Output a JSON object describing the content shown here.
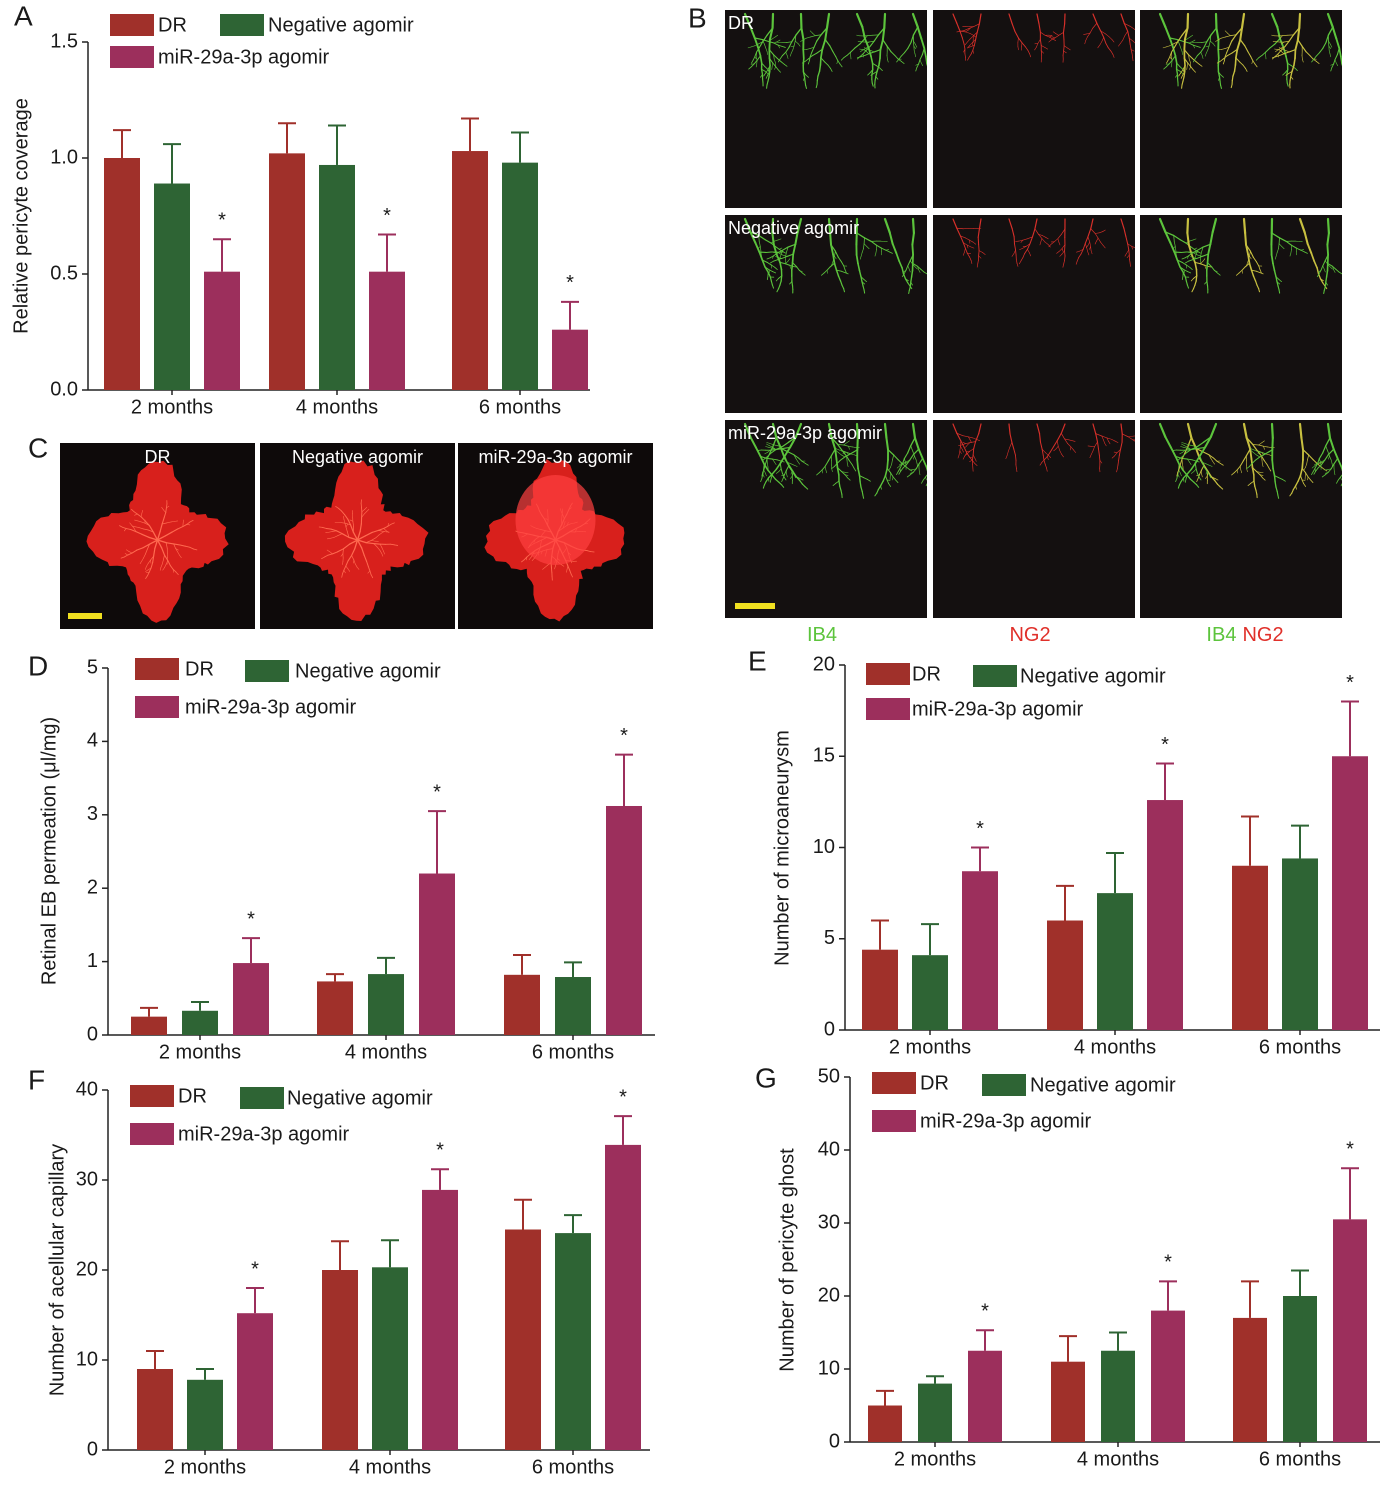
{
  "chart_data": [
    {
      "type": "bar",
      "panel": "A",
      "ylabel": "Relative pericyte coverage",
      "categories": [
        "2 months",
        "4 months",
        "6 months"
      ],
      "ylim": [
        0,
        1.5
      ],
      "yticks": [
        {
          "value": 0,
          "label": "0.0"
        },
        0.5,
        {
          "value": 1,
          "label": "1.0"
        },
        1.5
      ],
      "series": [
        {
          "name": "DR",
          "color": "#a0302a",
          "values": [
            1.0,
            1.02,
            1.03
          ],
          "errors": [
            0.12,
            0.13,
            0.14
          ]
        },
        {
          "name": "Negative agomir",
          "color": "#2e6434",
          "values": [
            0.89,
            0.97,
            0.98
          ],
          "errors": [
            0.17,
            0.17,
            0.13
          ]
        },
        {
          "name": "miR-29a-3p agomir",
          "color": "#9c2f5c",
          "values": [
            0.51,
            0.51,
            0.26
          ],
          "errors": [
            0.14,
            0.16,
            0.12
          ],
          "significance": [
            "*",
            "*",
            "*"
          ]
        }
      ]
    },
    {
      "type": "bar",
      "panel": "D",
      "ylabel": "Retinal EB permeation (μl/mg)",
      "categories": [
        "2 months",
        "4 months",
        "6 months"
      ],
      "ylim": [
        0,
        5
      ],
      "yticks": [
        0,
        1,
        2,
        3,
        4,
        5
      ],
      "series": [
        {
          "name": "DR",
          "color": "#a0302a",
          "values": [
            0.25,
            0.73,
            0.82
          ],
          "errors": [
            0.12,
            0.1,
            0.27
          ]
        },
        {
          "name": "Negative agomir",
          "color": "#2e6434",
          "values": [
            0.33,
            0.83,
            0.79
          ],
          "errors": [
            0.12,
            0.22,
            0.2
          ]
        },
        {
          "name": "miR-29a-3p agomir",
          "color": "#9c2f5c",
          "values": [
            0.98,
            2.2,
            3.12
          ],
          "errors": [
            0.34,
            0.85,
            0.7
          ],
          "significance": [
            "*",
            "*",
            "*"
          ]
        }
      ]
    },
    {
      "type": "bar",
      "panel": "E",
      "ylabel": "Number of microaneurysm",
      "categories": [
        "2 months",
        "4 months",
        "6 months"
      ],
      "ylim": [
        0,
        20
      ],
      "yticks": [
        0,
        5,
        10,
        15,
        20
      ],
      "series": [
        {
          "name": "DR",
          "color": "#a0302a",
          "values": [
            4.4,
            6.0,
            9.0
          ],
          "errors": [
            1.6,
            1.9,
            2.7
          ]
        },
        {
          "name": "Negative agomir",
          "color": "#2e6434",
          "values": [
            4.1,
            7.5,
            9.4
          ],
          "errors": [
            1.7,
            2.2,
            1.8
          ]
        },
        {
          "name": "miR-29a-3p agomir",
          "color": "#9c2f5c",
          "values": [
            8.7,
            12.6,
            15.0
          ],
          "errors": [
            1.3,
            2.0,
            3.0
          ],
          "significance": [
            "*",
            "*",
            "*"
          ]
        }
      ]
    },
    {
      "type": "bar",
      "panel": "F",
      "ylabel": "Number of acellular capillary",
      "categories": [
        "2 months",
        "4 months",
        "6 months"
      ],
      "ylim": [
        0,
        40
      ],
      "yticks": [
        0,
        10,
        20,
        30,
        40
      ],
      "series": [
        {
          "name": "DR",
          "color": "#a0302a",
          "values": [
            9.0,
            20.0,
            24.5
          ],
          "errors": [
            2.0,
            3.2,
            3.3
          ]
        },
        {
          "name": "Negative agomir",
          "color": "#2e6434",
          "values": [
            7.8,
            20.3,
            24.1
          ],
          "errors": [
            1.2,
            3.0,
            2.0
          ]
        },
        {
          "name": "miR-29a-3p agomir",
          "color": "#9c2f5c",
          "values": [
            15.2,
            28.9,
            33.9
          ],
          "errors": [
            2.8,
            2.3,
            3.2
          ],
          "significance": [
            "*",
            "*",
            "*"
          ]
        }
      ]
    },
    {
      "type": "bar",
      "panel": "G",
      "ylabel": "Number of pericyte ghost",
      "categories": [
        "2 months",
        "4 months",
        "6 months"
      ],
      "ylim": [
        0,
        50
      ],
      "yticks": [
        0,
        10,
        20,
        30,
        40,
        50
      ],
      "series": [
        {
          "name": "DR",
          "color": "#a0302a",
          "values": [
            5,
            11,
            17
          ],
          "errors": [
            2,
            3.5,
            5
          ]
        },
        {
          "name": "Negative agomir",
          "color": "#2e6434",
          "values": [
            8,
            12.5,
            20
          ],
          "errors": [
            1,
            2.5,
            3.5
          ]
        },
        {
          "name": "miR-29a-3p agomir",
          "color": "#9c2f5c",
          "values": [
            12.5,
            18,
            30.5
          ],
          "errors": [
            2.8,
            4,
            7
          ],
          "significance": [
            "*",
            "*",
            "*"
          ]
        }
      ]
    }
  ],
  "panel_b": {
    "letter": "B",
    "rows": [
      "DR",
      "Negative agomir",
      "miR-29a-3p agomir"
    ],
    "columns": [
      [
        "IB4"
      ],
      [
        "NG2"
      ],
      [
        "IB4",
        "NG2"
      ]
    ],
    "column_colors": [
      [
        "#5cc43c"
      ],
      [
        "#e0302a"
      ],
      [
        "#5cc43c",
        "#e0302a"
      ]
    ]
  },
  "panel_c": {
    "letter": "C",
    "labels": [
      "DR",
      "Negative agomir",
      "miR-29a-3p agomir"
    ]
  }
}
